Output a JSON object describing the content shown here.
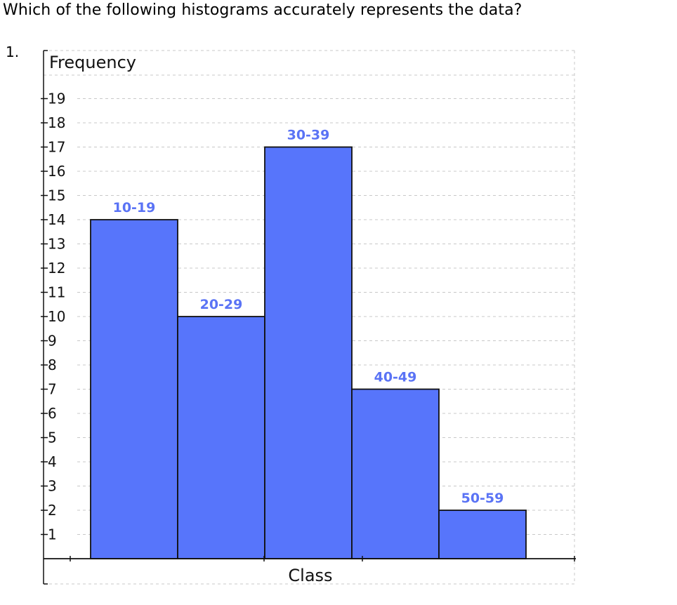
{
  "question": {
    "text": "Which of the following histograms accurately represents the data?",
    "number": "1."
  },
  "chart_data": {
    "type": "bar",
    "title": "",
    "xlabel": "Class",
    "ylabel": "Frequency",
    "categories": [
      "10-19",
      "20-29",
      "30-39",
      "40-49",
      "50-59"
    ],
    "values": [
      14,
      10,
      17,
      7,
      2
    ],
    "ylim": [
      0,
      20
    ],
    "yticks": [
      1,
      2,
      3,
      4,
      5,
      6,
      7,
      8,
      9,
      10,
      11,
      12,
      13,
      14,
      15,
      16,
      17,
      18,
      19
    ],
    "grid": true,
    "legend": "none",
    "bar_color": "#5775fb",
    "label_color": "#5a73f5"
  }
}
